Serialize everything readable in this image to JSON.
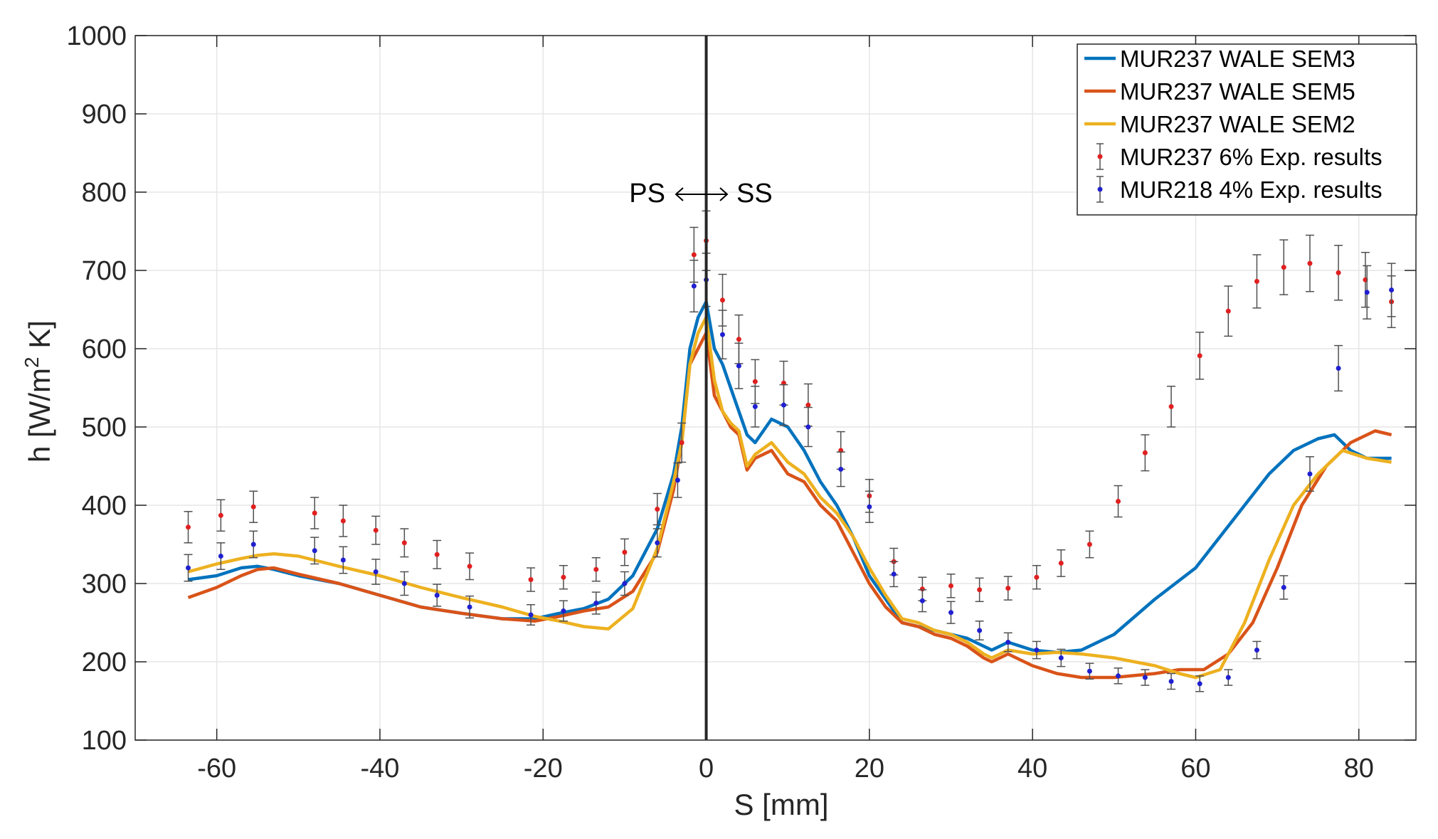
{
  "chart_data": {
    "type": "line",
    "title": "",
    "xlabel": "S [mm]",
    "ylabel_main": "h [W/m",
    "ylabel_sup": "2",
    "ylabel_tail": " K]",
    "xlim": [
      -70,
      87
    ],
    "ylim": [
      100,
      1000
    ],
    "xticks": [
      -60,
      -40,
      -20,
      0,
      20,
      40,
      60,
      80
    ],
    "yticks": [
      100,
      200,
      300,
      400,
      500,
      600,
      700,
      800,
      900,
      1000
    ],
    "grid": true,
    "legend_position": "top-right",
    "annotation": {
      "left": "PS",
      "right": "SS",
      "x": 0,
      "y": 800
    },
    "vline_x": 0,
    "series": [
      {
        "name": "MUR237 WALE SEM3",
        "kind": "line",
        "color": "#0072BD",
        "x": [
          -63.5,
          -60,
          -57,
          -55,
          -53,
          -50,
          -45,
          -40,
          -35,
          -30,
          -25,
          -21,
          -18,
          -15,
          -12,
          -9,
          -6,
          -4,
          -3,
          -2,
          -1,
          0,
          1,
          2,
          3,
          4,
          5,
          6,
          8,
          10,
          12,
          14,
          16,
          18,
          20,
          22,
          24,
          26,
          28,
          30,
          32,
          34,
          35,
          37,
          40,
          43,
          46,
          50,
          55,
          60,
          63,
          66,
          69,
          72,
          75,
          77,
          79,
          81,
          84
        ],
        "y": [
          305,
          310,
          320,
          322,
          318,
          310,
          300,
          285,
          270,
          262,
          255,
          255,
          262,
          268,
          280,
          310,
          370,
          440,
          500,
          600,
          640,
          660,
          600,
          580,
          550,
          520,
          490,
          480,
          510,
          500,
          470,
          430,
          400,
          360,
          310,
          280,
          250,
          245,
          240,
          235,
          230,
          220,
          215,
          225,
          215,
          212,
          215,
          235,
          280,
          320,
          360,
          400,
          440,
          470,
          485,
          490,
          470,
          460,
          460
        ]
      },
      {
        "name": "MUR237 WALE SEM5",
        "kind": "line",
        "color": "#D95319",
        "x": [
          -63.5,
          -60,
          -57,
          -55,
          -53,
          -50,
          -45,
          -40,
          -35,
          -30,
          -25,
          -21,
          -18,
          -15,
          -12,
          -9,
          -6,
          -4,
          -3,
          -2,
          -1,
          0,
          1,
          2,
          3,
          4,
          5,
          6,
          8,
          10,
          12,
          14,
          16,
          18,
          20,
          22,
          24,
          26,
          28,
          30,
          32,
          34,
          35,
          37,
          40,
          43,
          46,
          50,
          55,
          58,
          61,
          64,
          67,
          70,
          73,
          76,
          79,
          82,
          84
        ],
        "y": [
          282,
          295,
          310,
          318,
          320,
          312,
          300,
          285,
          270,
          262,
          255,
          252,
          258,
          265,
          270,
          290,
          340,
          420,
          480,
          580,
          600,
          620,
          540,
          520,
          500,
          490,
          445,
          460,
          470,
          440,
          430,
          400,
          380,
          340,
          300,
          270,
          250,
          245,
          235,
          230,
          220,
          205,
          200,
          210,
          195,
          185,
          180,
          180,
          185,
          190,
          190,
          210,
          250,
          320,
          400,
          450,
          480,
          495,
          490
        ]
      },
      {
        "name": "MUR237 WALE SEM2",
        "kind": "line",
        "color": "#EDB120",
        "x": [
          -63.5,
          -60,
          -57,
          -55,
          -53,
          -50,
          -45,
          -40,
          -35,
          -30,
          -25,
          -21,
          -18,
          -15,
          -12,
          -9,
          -6,
          -4,
          -3,
          -2,
          -1,
          0,
          1,
          2,
          3,
          4,
          5,
          6,
          8,
          10,
          12,
          14,
          16,
          18,
          20,
          22,
          24,
          26,
          28,
          30,
          32,
          34,
          35,
          37,
          40,
          43,
          46,
          50,
          55,
          58,
          60,
          63,
          66,
          69,
          72,
          75,
          78,
          81,
          84
        ],
        "y": [
          315,
          325,
          332,
          336,
          338,
          335,
          322,
          310,
          295,
          282,
          270,
          258,
          252,
          245,
          242,
          268,
          345,
          430,
          480,
          580,
          620,
          640,
          560,
          520,
          505,
          495,
          450,
          465,
          480,
          455,
          440,
          410,
          390,
          360,
          320,
          285,
          255,
          250,
          240,
          235,
          225,
          210,
          205,
          215,
          210,
          212,
          210,
          205,
          195,
          185,
          180,
          190,
          250,
          330,
          400,
          440,
          470,
          460,
          455
        ]
      },
      {
        "name": "MUR237 6% Exp. results",
        "kind": "errorbar",
        "color": "#E02020",
        "x": [
          -63.5,
          -59.5,
          -55.5,
          -48,
          -44.5,
          -40.5,
          -37,
          -33,
          -29,
          -21.5,
          -17.5,
          -13.5,
          -10,
          -6,
          -3,
          -1.5,
          0,
          2,
          4,
          6,
          9.5,
          12.5,
          16.5,
          20,
          23,
          26.5,
          30,
          33.5,
          37,
          40.5,
          43.5,
          47,
          50.5,
          53.8,
          57,
          60.5,
          64,
          67.5,
          70.8,
          74,
          77.5,
          80.8,
          84
        ],
        "y": [
          372,
          387,
          398,
          390,
          380,
          368,
          352,
          337,
          322,
          305,
          308,
          318,
          340,
          395,
          480,
          720,
          738,
          662,
          612,
          558,
          556,
          528,
          470,
          412,
          328,
          293,
          297,
          292,
          294,
          308,
          326,
          350,
          405,
          467,
          526,
          591,
          648,
          686,
          704,
          709,
          697,
          688,
          660
        ],
        "err": [
          20,
          20,
          20,
          20,
          20,
          18,
          18,
          18,
          17,
          15,
          15,
          15,
          17,
          20,
          25,
          35,
          38,
          33,
          31,
          28,
          28,
          27,
          24,
          21,
          17,
          15,
          15,
          15,
          15,
          15,
          17,
          17,
          20,
          23,
          26,
          30,
          32,
          34,
          35,
          36,
          35,
          35,
          33
        ]
      },
      {
        "name": "MUR218 4% Exp. results",
        "kind": "errorbar",
        "color": "#2020D0",
        "x": [
          -63.5,
          -59.5,
          -55.5,
          -48,
          -44.5,
          -40.5,
          -37,
          -33,
          -29,
          -21.5,
          -17.5,
          -13.5,
          -10,
          -6,
          -3.5,
          -1.5,
          0,
          2,
          4,
          6,
          9.5,
          12.5,
          16.5,
          20,
          23,
          26.5,
          30,
          33.5,
          37,
          40.5,
          43.5,
          47,
          50.5,
          53.8,
          57,
          60.5,
          64,
          67.5,
          70.8,
          74,
          77.5,
          81,
          84
        ],
        "y": [
          320,
          335,
          350,
          342,
          330,
          315,
          300,
          285,
          270,
          260,
          265,
          275,
          300,
          352,
          432,
          680,
          688,
          618,
          578,
          526,
          528,
          500,
          446,
          398,
          312,
          278,
          263,
          240,
          225,
          215,
          205,
          188,
          182,
          180,
          175,
          172,
          180,
          215,
          295,
          440,
          575,
          672,
          675
        ],
        "err": [
          17,
          17,
          17,
          17,
          17,
          16,
          15,
          14,
          14,
          13,
          13,
          14,
          15,
          18,
          22,
          33,
          34,
          31,
          29,
          26,
          26,
          25,
          22,
          20,
          16,
          14,
          14,
          12,
          12,
          11,
          11,
          10,
          10,
          10,
          10,
          10,
          10,
          11,
          15,
          22,
          29,
          34,
          34
        ]
      }
    ]
  }
}
